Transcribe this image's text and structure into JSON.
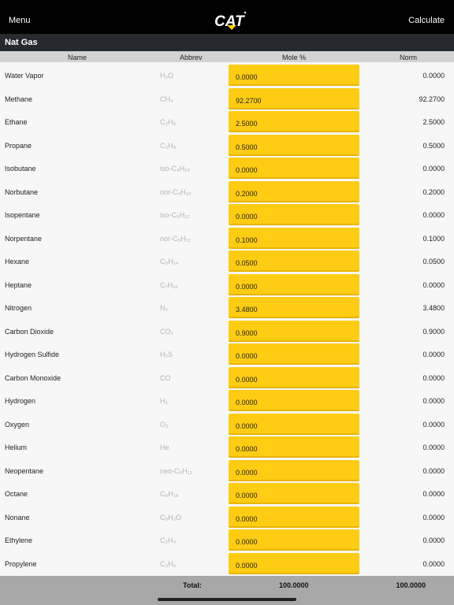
{
  "header": {
    "menu_label": "Menu",
    "brand": "CAT",
    "calculate_label": "Calculate"
  },
  "section": {
    "title": "Nat Gas"
  },
  "columns": {
    "name": "Name",
    "abbrev": "Abbrev",
    "mole": "Mole %",
    "norm": "Norm"
  },
  "rows": [
    {
      "name": "Water Vapor",
      "abbrev": "H₂O",
      "mole": "0.0000",
      "norm": "0.0000"
    },
    {
      "name": "Methane",
      "abbrev": "CH₄",
      "mole": "92.2700",
      "norm": "92.2700"
    },
    {
      "name": "Ethane",
      "abbrev": "C₂H₆",
      "mole": "2.5000",
      "norm": "2.5000"
    },
    {
      "name": "Propane",
      "abbrev": "C₃H₈",
      "mole": "0.5000",
      "norm": "0.5000"
    },
    {
      "name": "Isobutane",
      "abbrev": "iso-C₄H₁₀",
      "mole": "0.0000",
      "norm": "0.0000"
    },
    {
      "name": "Norbutane",
      "abbrev": "nor-C₄H₁₀",
      "mole": "0.2000",
      "norm": "0.2000"
    },
    {
      "name": "Isopentane",
      "abbrev": "iso-C₅H₁₂",
      "mole": "0.0000",
      "norm": "0.0000"
    },
    {
      "name": "Norpentane",
      "abbrev": "nor-C₅H₁₂",
      "mole": "0.1000",
      "norm": "0.1000"
    },
    {
      "name": "Hexane",
      "abbrev": "C₆H₁₄",
      "mole": "0.0500",
      "norm": "0.0500"
    },
    {
      "name": "Heptane",
      "abbrev": "C₇H₁₆",
      "mole": "0.0000",
      "norm": "0.0000"
    },
    {
      "name": "Nitrogen",
      "abbrev": "N₂",
      "mole": "3.4800",
      "norm": "3.4800"
    },
    {
      "name": "Carbon Dioxide",
      "abbrev": "CO₂",
      "mole": "0.9000",
      "norm": "0.9000"
    },
    {
      "name": "Hydrogen Sulfide",
      "abbrev": "H₂S",
      "mole": "0.0000",
      "norm": "0.0000"
    },
    {
      "name": "Carbon Monoxide",
      "abbrev": "CO",
      "mole": "0.0000",
      "norm": "0.0000"
    },
    {
      "name": "Hydrogen",
      "abbrev": "H₂",
      "mole": "0.0000",
      "norm": "0.0000"
    },
    {
      "name": "Oxygen",
      "abbrev": "O₂",
      "mole": "0.0000",
      "norm": "0.0000"
    },
    {
      "name": "Helium",
      "abbrev": "He",
      "mole": "0.0000",
      "norm": "0.0000"
    },
    {
      "name": "Neopentane",
      "abbrev": "neo-C₅H₁₂",
      "mole": "0.0000",
      "norm": "0.0000"
    },
    {
      "name": "Octane",
      "abbrev": "C₈H₁₈",
      "mole": "0.0000",
      "norm": "0.0000"
    },
    {
      "name": "Nonane",
      "abbrev": "C₉H₂O",
      "mole": "0.0000",
      "norm": "0.0000"
    },
    {
      "name": "Ethylene",
      "abbrev": "C₂H₄",
      "mole": "0.0000",
      "norm": "0.0000"
    },
    {
      "name": "Propylene",
      "abbrev": "C₃H₆",
      "mole": "0.0000",
      "norm": "0.0000"
    }
  ],
  "footer": {
    "total_label": "Total:",
    "total_mole": "100.0000",
    "total_norm": "100.0000"
  },
  "colors": {
    "accent_yellow": "#ffcc14",
    "topbar": "#000000",
    "section_bar": "#262a2f"
  },
  "icons": {
    "logo": "cat-logo"
  }
}
